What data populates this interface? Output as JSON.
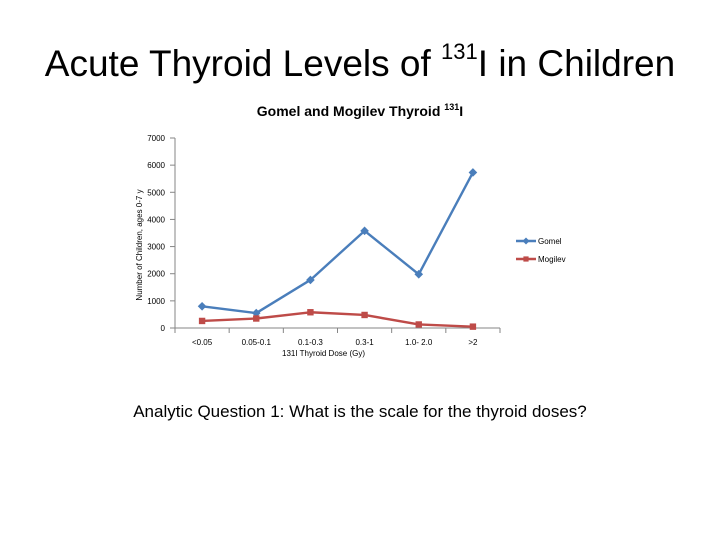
{
  "slide": {
    "title_pre": "Acute Thyroid Levels of ",
    "title_sup": "131",
    "title_post": "I in Children",
    "question": "Analytic Question 1:  What is the scale for the thyroid doses?"
  },
  "chart_data": {
    "type": "line",
    "title_pre": "Gomel and Mogilev Thyroid ",
    "title_sup": "131",
    "title_post": "I",
    "xlabel": "131I Thyroid Dose (Gy)",
    "ylabel": "Number of Children, ages 0-7 y",
    "categories": [
      "<0.05",
      "0.05-0.1",
      "0.1-0.3",
      "0.3-1",
      "1.0- 2.0",
      ">2"
    ],
    "ylim": [
      0,
      7000
    ],
    "yticks": [
      0,
      1000,
      2000,
      3000,
      4000,
      5000,
      6000,
      7000
    ],
    "grid": false,
    "legend_position": "right",
    "series": [
      {
        "name": "Gomel",
        "color": "#4a7ebb",
        "marker": "diamond",
        "values": [
          800,
          550,
          1770,
          3580,
          1980,
          5730
        ]
      },
      {
        "name": "Mogilev",
        "color": "#be4b48",
        "marker": "square",
        "values": [
          260,
          350,
          580,
          480,
          130,
          50
        ]
      }
    ]
  }
}
